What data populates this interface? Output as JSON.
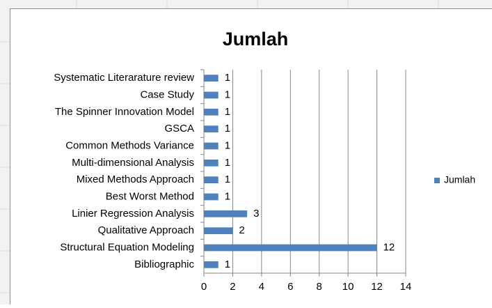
{
  "chart_data": {
    "type": "bar",
    "orientation": "horizontal",
    "title": "Jumlah",
    "categories": [
      "Systematic Literarature review",
      "Case Study",
      "The Spinner Innovation Model",
      "GSCA",
      "Common Methods Variance ",
      "Multi-dimensional Analysis",
      "Mixed Methods Approach",
      "Best Worst Method",
      "Linier Regression Analysis",
      "Qualitative Approach",
      "Structural Equation Modeling",
      "Bibliographic"
    ],
    "series": [
      {
        "name": "Jumlah",
        "color": "#4f81bd",
        "values": [
          1,
          1,
          1,
          1,
          1,
          1,
          1,
          1,
          3,
          2,
          12,
          1
        ]
      }
    ],
    "xlim": [
      0,
      14
    ],
    "xticks": [
      0,
      2,
      4,
      6,
      8,
      10,
      12,
      14
    ],
    "grid": true,
    "legend": "right"
  }
}
